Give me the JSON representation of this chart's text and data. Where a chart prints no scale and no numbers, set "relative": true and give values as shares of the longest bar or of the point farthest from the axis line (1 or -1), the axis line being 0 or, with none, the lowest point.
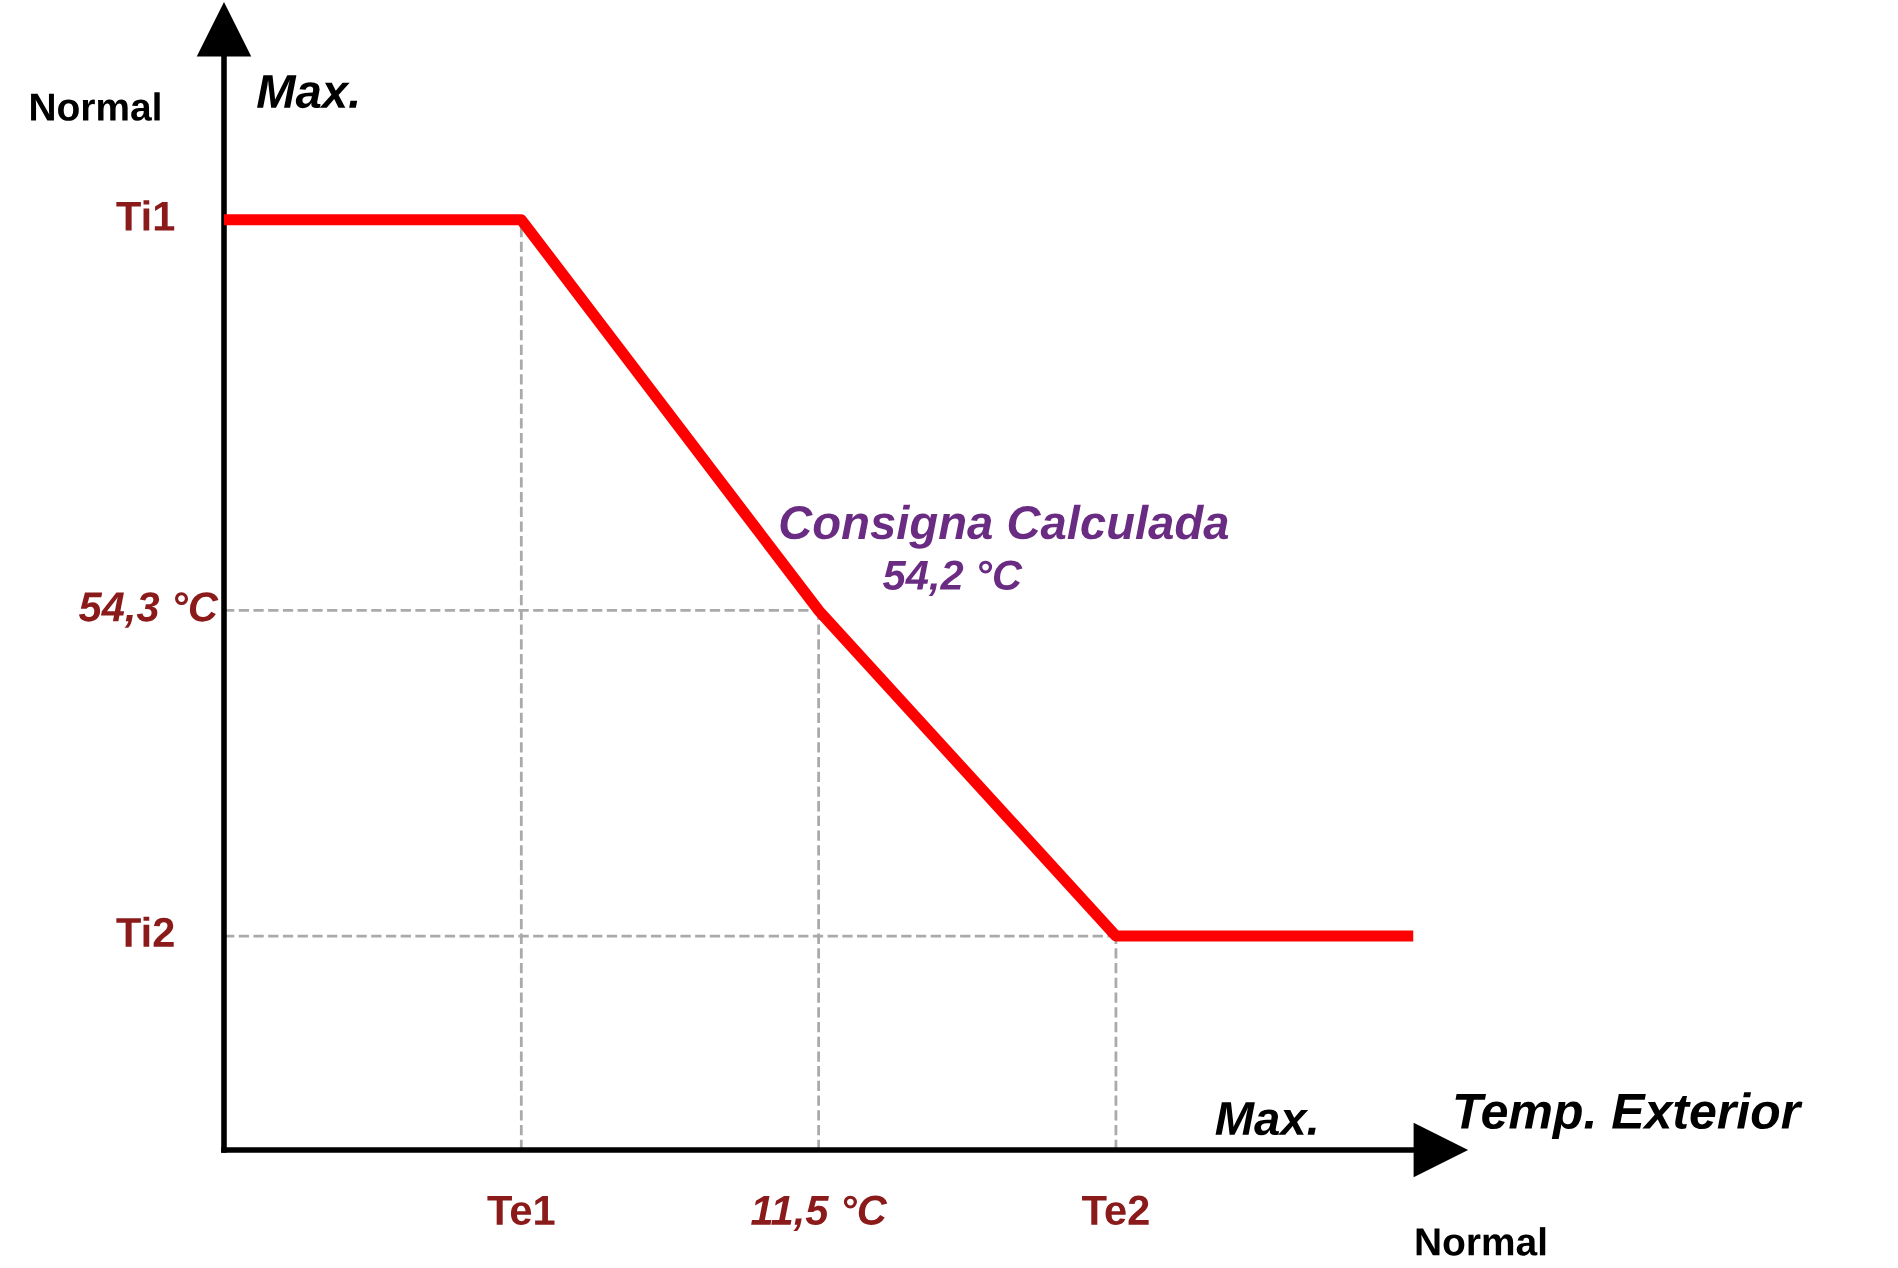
{
  "chart_data": {
    "type": "line",
    "relative": true,
    "categories": [
      null,
      "Te1",
      "11,5 °C",
      "Te2",
      null
    ],
    "series": [
      {
        "color": "#ff0000",
        "values": [
          1,
          1,
          0.58,
          0.23,
          0.23
        ]
      }
    ],
    "annotations": [
      "Normal",
      "Max.",
      "Max.",
      "Temp. Exterior",
      "Normal",
      "Consigna Calculada",
      "54,2 °C",
      "Ti1",
      "54,3 °C",
      "Ti2"
    ],
    "ref_lines": [
      {
        "axis": "x",
        "value": "Te1",
        "color": "#aaaaaa",
        "line_style": "dashed"
      },
      {
        "axis": "x",
        "value": "11,5 °C",
        "color": "#aaaaaa",
        "line_style": "dashed"
      },
      {
        "axis": "x",
        "value": "Te2",
        "color": "#aaaaaa",
        "line_style": "dashed"
      }
    ],
    "marker": "none",
    "line_style": "solid"
  }
}
